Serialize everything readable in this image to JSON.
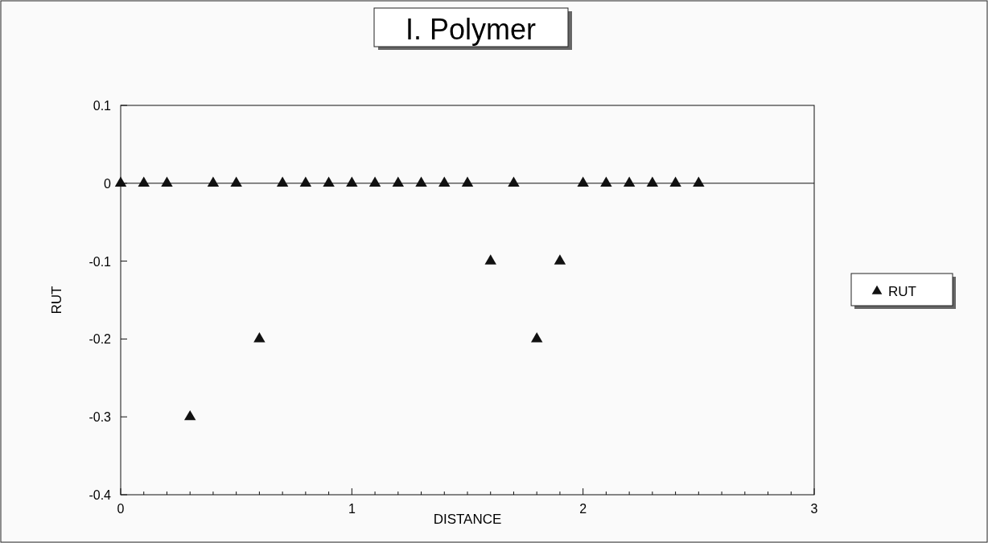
{
  "chart_data": {
    "type": "scatter",
    "title": "I. Polymer",
    "xlabel": "DISTANCE",
    "ylabel": "RUT",
    "x": [
      0,
      0.1,
      0.2,
      0.3,
      0.4,
      0.5,
      0.6,
      0.7,
      0.8,
      0.9,
      1,
      1.1,
      1.2,
      1.3,
      1.4,
      1.5,
      1.6,
      1.7,
      1.8,
      1.9,
      2,
      2.1,
      2.2,
      2.3,
      2.4,
      2.5
    ],
    "series": [
      {
        "name": "RUT",
        "color": "#111111",
        "values": [
          0,
          0,
          0,
          -0.3,
          0,
          0,
          -0.2,
          0,
          0,
          0,
          0,
          0,
          0,
          0,
          0,
          0,
          -0.1,
          0,
          -0.2,
          -0.1,
          0,
          0,
          0,
          0,
          0,
          0
        ]
      }
    ],
    "xlim": [
      0,
      3
    ],
    "xticks": [
      0,
      1,
      2,
      3
    ],
    "ylim": [
      -0.4,
      0.1
    ],
    "yticks": [
      0.1,
      0,
      -0.1,
      -0.2,
      -0.3,
      -0.4
    ],
    "ref_lines": [
      {
        "axis": "y",
        "value": 0,
        "color": "#111111"
      }
    ],
    "marker": "triangle",
    "legend": "right",
    "grid": false
  }
}
